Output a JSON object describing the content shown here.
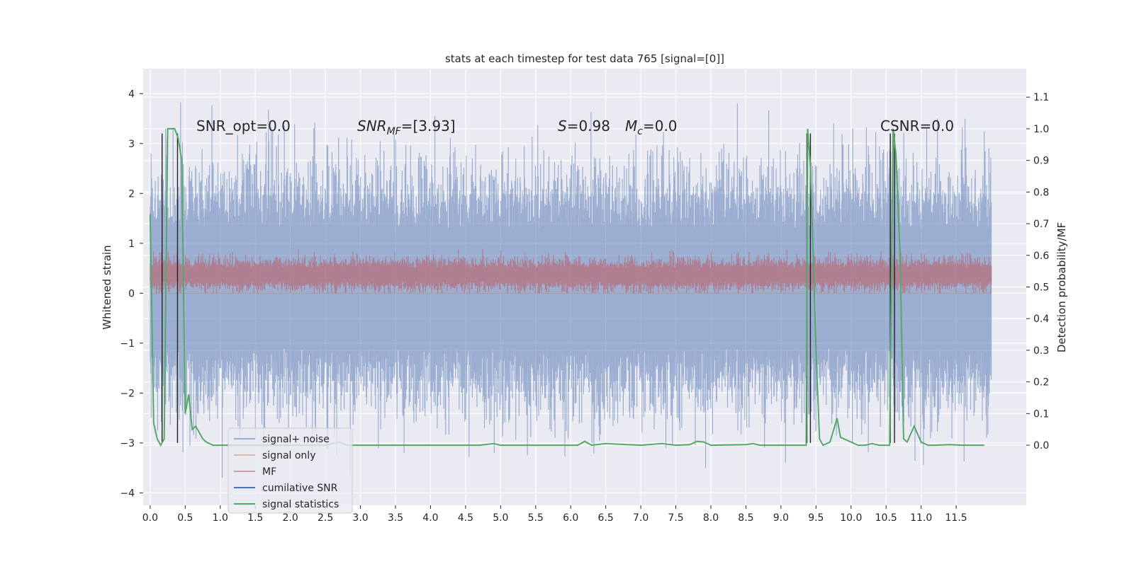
{
  "chart_data": {
    "type": "line",
    "title": "stats at each timestep for test data 765 [signal=[0]]",
    "ylabel_left": "Whitened strain",
    "ylabel_right": "Detection probability/MF",
    "xlim": [
      -0.1,
      12.5
    ],
    "ylim_left": [
      -4.25,
      4.5
    ],
    "ylim_right": [
      -0.19,
      1.19
    ],
    "grid": true,
    "legend_placement": "lower-left",
    "x_ticks": [
      "0.0",
      "0.5",
      "1.0",
      "1.5",
      "2.0",
      "2.5",
      "3.0",
      "3.5",
      "4.0",
      "4.5",
      "5.0",
      "5.5",
      "6.0",
      "6.5",
      "7.0",
      "7.5",
      "8.0",
      "8.5",
      "9.0",
      "9.5",
      "10.0",
      "10.5",
      "11.0",
      "11.5"
    ],
    "y_ticks_left": [
      "4",
      "3",
      "2",
      "1",
      "0",
      "−1",
      "−2",
      "−3",
      "−4"
    ],
    "y_ticks_right": [
      "1.1",
      "1.0",
      "0.9",
      "0.8",
      "0.7",
      "0.6",
      "0.5",
      "0.4",
      "0.3",
      "0.2",
      "0.1",
      "0.0"
    ],
    "annotations": {
      "snr_opt": "SNR_opt=0.0",
      "snr_mf_main": "SNR",
      "snr_mf_sub": "MF",
      "snr_mf_value": "=[3.93]",
      "s_main": "S",
      "s_value": "=0.98",
      "mc_main": "M",
      "mc_sub": "c",
      "mc_value": "=0.0",
      "csnr": "CSNR=0.0"
    },
    "series": [
      {
        "name": "signal+ noise",
        "color": "#4C72B0",
        "axis": "left",
        "x_range": [
          0.0,
          12.0
        ],
        "y_range": [
          -3.7,
          4.1
        ],
        "style": "dense noise",
        "alpha": 0.5
      },
      {
        "name": "signal only",
        "color": "#DD8452",
        "axis": "left",
        "values": "zero",
        "alpha": 0.5
      },
      {
        "name": "MF",
        "color": "#C44E52",
        "axis": "right",
        "x_range": [
          0.0,
          12.0
        ],
        "y_range": [
          0.48,
          0.62
        ],
        "style": "dense noise",
        "alpha": 0.5
      },
      {
        "name": "cumilative SNR",
        "color": "#4C72B0",
        "axis": "left",
        "values": "zero"
      },
      {
        "name": "signal statistics",
        "color": "#55A868",
        "axis": "right",
        "x": [
          0.0,
          0.05,
          0.1,
          0.15,
          0.2,
          0.25,
          0.3,
          0.35,
          0.4,
          0.45,
          0.5,
          0.55,
          0.6,
          0.65,
          0.7,
          0.75,
          0.8,
          0.9,
          1.0,
          1.5,
          2.0,
          2.5,
          2.7,
          2.8,
          3.0,
          3.5,
          4.0,
          4.5,
          4.7,
          4.9,
          5.0,
          5.5,
          6.0,
          6.1,
          6.2,
          6.3,
          6.5,
          7.0,
          7.3,
          7.5,
          7.7,
          7.8,
          7.9,
          8.0,
          8.5,
          8.6,
          8.7,
          9.0,
          9.36,
          9.38,
          9.42,
          9.46,
          9.5,
          9.55,
          9.6,
          9.7,
          9.8,
          9.85,
          10.0,
          10.1,
          10.2,
          10.3,
          10.4,
          10.55,
          10.6,
          10.64,
          10.7,
          10.75,
          10.8,
          10.9,
          11.0,
          11.1,
          11.2,
          11.4,
          11.6,
          11.9
        ],
        "y": [
          0.73,
          0.07,
          0.02,
          0.0,
          0.02,
          1.0,
          1.0,
          1.0,
          0.97,
          0.9,
          0.1,
          0.16,
          0.05,
          0.06,
          0.04,
          0.02,
          0.01,
          0.0,
          0.0,
          0.0,
          0.0,
          0.0,
          0.01,
          0.0,
          0.0,
          0.0,
          0.0,
          0.0,
          0.0,
          0.005,
          0.0,
          0.0,
          0.0,
          0.0,
          0.012,
          0.0,
          0.005,
          0.0,
          0.005,
          0.0,
          0.002,
          0.012,
          0.01,
          0.0,
          0.002,
          0.005,
          0.0,
          0.0,
          0.0,
          1.0,
          0.88,
          0.6,
          0.3,
          0.02,
          0.0,
          0.01,
          0.085,
          0.025,
          0.01,
          0.0,
          0.0,
          0.005,
          0.0,
          0.0,
          1.0,
          0.92,
          0.6,
          0.02,
          0.01,
          0.06,
          0.01,
          0.0,
          0.0,
          0.002,
          0.0,
          0.0
        ]
      }
    ],
    "vertical_markers": [
      {
        "x": 0.17,
        "color": "#222222"
      },
      {
        "x": 0.39,
        "color": "#222222"
      },
      {
        "x": 9.37,
        "color": "#222222"
      },
      {
        "x": 9.42,
        "color": "#222222"
      },
      {
        "x": 10.56,
        "color": "#222222"
      },
      {
        "x": 10.62,
        "color": "#222222"
      }
    ]
  }
}
